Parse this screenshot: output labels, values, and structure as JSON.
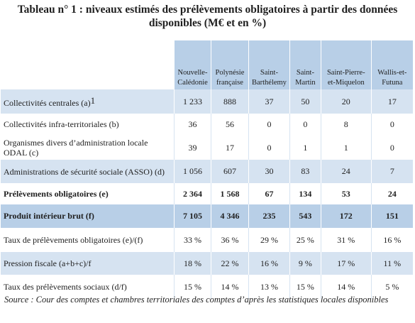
{
  "title": "Tableau n° 1 : niveaux estimés des prélèvements obligatoires à partir des données disponibles (M€ et en %)",
  "columns": [
    "Nouvelle-Calédonie",
    "Polynésie française",
    "Saint-Barthélemy",
    "Saint-Martin",
    "Saint-Pierre-et-Miquelon",
    "Wallis-et-Futuna"
  ],
  "rows": [
    {
      "label": "Collectivités centrales (a)",
      "sup": "1",
      "values": [
        "1 233",
        "888",
        "37",
        "50",
        "20",
        "17"
      ]
    },
    {
      "label": "Collectivités infra-territoriales (b)",
      "values": [
        "36",
        "56",
        "0",
        "0",
        "8",
        "0"
      ]
    },
    {
      "label": "Organismes divers d’administration locale ODAL (c)",
      "values": [
        "39",
        "17",
        "0",
        "1",
        "1",
        "0"
      ]
    },
    {
      "label": "Administrations de sécurité sociale (ASSO) (d)",
      "values": [
        "1 056",
        "607",
        "30",
        "83",
        "24",
        "7"
      ]
    },
    {
      "label": "Prélèvements obligatoires (e)",
      "values": [
        "2 364",
        "1 568",
        "67",
        "134",
        "53",
        "24"
      ]
    },
    {
      "label": "Produit intérieur brut (f)",
      "values": [
        "7 105",
        "4 346",
        "235",
        "543",
        "172",
        "151"
      ]
    },
    {
      "label": "Taux de prélèvements obligatoires (e)/(f)",
      "values": [
        "33 %",
        "36 %",
        "29 %",
        "25 %",
        "31 %",
        "16 %"
      ]
    },
    {
      "label": "Pression fiscale (a+b+c)/f",
      "values": [
        "18 %",
        "22 %",
        "16 %",
        "9 %",
        "17 %",
        "11 %"
      ]
    },
    {
      "label": "Taux des prélèvements sociaux (d/f)",
      "values": [
        "15 %",
        "14 %",
        "13 %",
        "15 %",
        "14 %",
        "5 %"
      ]
    }
  ],
  "source": "Source : Cour des comptes et chambres territoriales des comptes d’après les statistiques locales disponibles"
}
